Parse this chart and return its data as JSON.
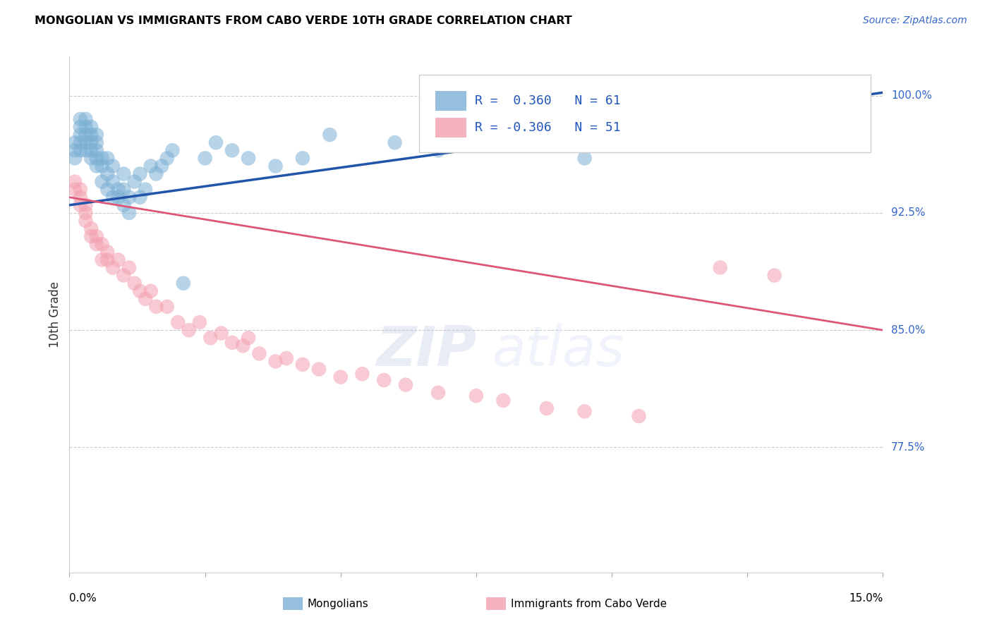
{
  "title": "MONGOLIAN VS IMMIGRANTS FROM CABO VERDE 10TH GRADE CORRELATION CHART",
  "source": "Source: ZipAtlas.com",
  "ylabel": "10th Grade",
  "xmin": 0.0,
  "xmax": 0.15,
  "ymin": 0.695,
  "ymax": 1.025,
  "ytick_vals": [
    0.775,
    0.85,
    0.925,
    1.0
  ],
  "ytick_labels": [
    "77.5%",
    "85.0%",
    "92.5%",
    "100.0%"
  ],
  "blue_R": 0.36,
  "blue_N": 61,
  "pink_R": -0.306,
  "pink_N": 51,
  "blue_color": "#7BAFD4",
  "pink_color": "#F4A0B0",
  "blue_line_color": "#2255AA",
  "pink_line_color": "#DD5577",
  "legend_label_blue": "Mongolians",
  "legend_label_pink": "Immigrants from Cabo Verde",
  "watermark_zip": "ZIP",
  "watermark_atlas": "atlas",
  "blue_line_x0": 0.0,
  "blue_line_y0": 0.93,
  "blue_line_x1": 0.15,
  "blue_line_y1": 1.002,
  "pink_line_x0": 0.0,
  "pink_line_y0": 0.935,
  "pink_line_x1": 0.15,
  "pink_line_y1": 0.85,
  "blue_x": [
    0.001,
    0.001,
    0.001,
    0.002,
    0.002,
    0.002,
    0.002,
    0.002,
    0.003,
    0.003,
    0.003,
    0.003,
    0.003,
    0.004,
    0.004,
    0.004,
    0.004,
    0.004,
    0.005,
    0.005,
    0.005,
    0.005,
    0.005,
    0.006,
    0.006,
    0.006,
    0.007,
    0.007,
    0.007,
    0.008,
    0.008,
    0.008,
    0.009,
    0.009,
    0.01,
    0.01,
    0.01,
    0.011,
    0.011,
    0.012,
    0.013,
    0.013,
    0.014,
    0.015,
    0.016,
    0.017,
    0.018,
    0.019,
    0.021,
    0.025,
    0.027,
    0.03,
    0.033,
    0.038,
    0.043,
    0.048,
    0.06,
    0.068,
    0.078,
    0.095,
    0.125
  ],
  "blue_y": [
    0.96,
    0.965,
    0.97,
    0.965,
    0.97,
    0.975,
    0.98,
    0.985,
    0.965,
    0.97,
    0.975,
    0.98,
    0.985,
    0.96,
    0.965,
    0.97,
    0.975,
    0.98,
    0.955,
    0.96,
    0.965,
    0.97,
    0.975,
    0.945,
    0.955,
    0.96,
    0.94,
    0.95,
    0.96,
    0.935,
    0.945,
    0.955,
    0.935,
    0.94,
    0.93,
    0.94,
    0.95,
    0.925,
    0.935,
    0.945,
    0.935,
    0.95,
    0.94,
    0.955,
    0.95,
    0.955,
    0.96,
    0.965,
    0.88,
    0.96,
    0.97,
    0.965,
    0.96,
    0.955,
    0.96,
    0.975,
    0.97,
    0.965,
    0.975,
    0.96,
    0.975
  ],
  "pink_x": [
    0.001,
    0.001,
    0.002,
    0.002,
    0.002,
    0.003,
    0.003,
    0.003,
    0.004,
    0.004,
    0.005,
    0.005,
    0.006,
    0.006,
    0.007,
    0.007,
    0.008,
    0.009,
    0.01,
    0.011,
    0.012,
    0.013,
    0.014,
    0.015,
    0.016,
    0.018,
    0.02,
    0.022,
    0.024,
    0.026,
    0.028,
    0.03,
    0.032,
    0.033,
    0.035,
    0.038,
    0.04,
    0.043,
    0.046,
    0.05,
    0.054,
    0.058,
    0.062,
    0.068,
    0.075,
    0.08,
    0.088,
    0.095,
    0.105,
    0.12,
    0.13
  ],
  "pink_y": [
    0.94,
    0.945,
    0.93,
    0.935,
    0.94,
    0.92,
    0.925,
    0.93,
    0.91,
    0.915,
    0.905,
    0.91,
    0.895,
    0.905,
    0.895,
    0.9,
    0.89,
    0.895,
    0.885,
    0.89,
    0.88,
    0.875,
    0.87,
    0.875,
    0.865,
    0.865,
    0.855,
    0.85,
    0.855,
    0.845,
    0.848,
    0.842,
    0.84,
    0.845,
    0.835,
    0.83,
    0.832,
    0.828,
    0.825,
    0.82,
    0.822,
    0.818,
    0.815,
    0.81,
    0.808,
    0.805,
    0.8,
    0.798,
    0.795,
    0.89,
    0.885
  ]
}
